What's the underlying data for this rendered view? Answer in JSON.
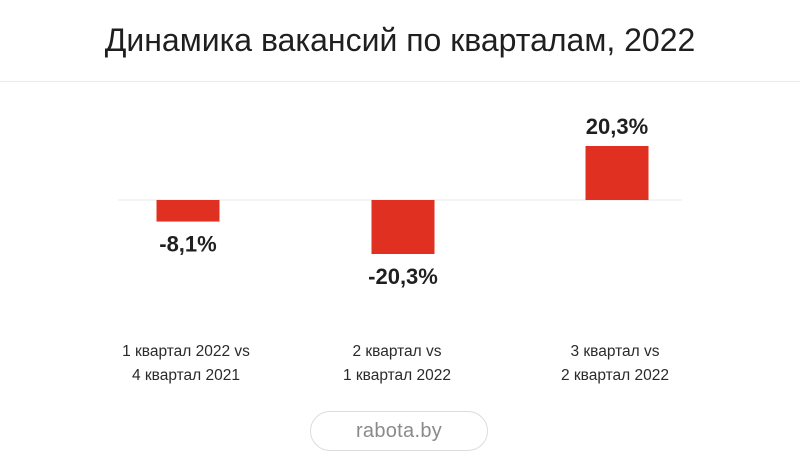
{
  "title": "Динамика вакансий по кварталам, 2022",
  "source": "rabota.by",
  "colors": {
    "bar": "#e03022",
    "baseline": "#e8e8e8",
    "text": "#1f1f1f"
  },
  "chart_data": {
    "type": "bar",
    "title": "Динамика вакансий по кварталам, 2022",
    "categories": [
      [
        "1 квартал 2022 vs",
        "4 квартал 2021"
      ],
      [
        "2 квартал vs",
        "1 квартал 2022"
      ],
      [
        "3 квартал vs",
        "2 квартал 2022"
      ]
    ],
    "values": [
      -8.1,
      -20.3,
      20.3
    ],
    "value_labels": [
      "-8,1%",
      "-20,3%",
      "20,3%"
    ],
    "unit": "%",
    "xlabel": "",
    "ylabel": "",
    "ylim": [
      -22,
      22
    ],
    "grid": false,
    "legend": "none"
  }
}
